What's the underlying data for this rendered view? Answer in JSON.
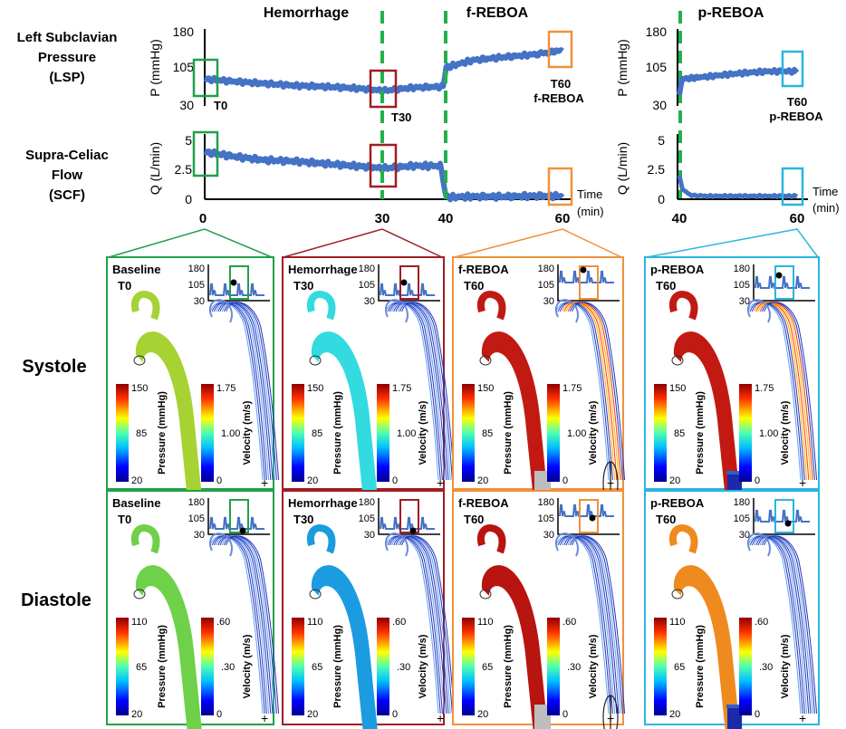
{
  "phase_titles": [
    "Hemorrhage",
    "f-REBOA",
    "p-REBOA"
  ],
  "row_labels": {
    "lsp": [
      "Left Subclavian",
      "Pressure",
      "(LSP)"
    ],
    "scf": [
      "Supra-Celiac",
      "Flow",
      "(SCF)"
    ],
    "systole": "Systole",
    "diastole": "Diastole"
  },
  "top_axes": {
    "p_label": "P (mmHg)",
    "q_label": "Q (L/min)",
    "p_ticks": [
      "180",
      "105",
      "30"
    ],
    "q_ticks": [
      "5",
      "2.5",
      "0"
    ],
    "time_label": [
      "Time",
      "(min)"
    ],
    "x_ticks_left": [
      "0",
      "30",
      "40",
      "60"
    ],
    "x_ticks_right": [
      "40",
      "60"
    ]
  },
  "chart_data": [
    {
      "type": "line",
      "title": "Left Subclavian Pressure (LSP)",
      "ylabel": "P (mmHg)",
      "xlabel": "Time (min)",
      "ylim": [
        30,
        180
      ],
      "xlim": [
        0,
        60
      ],
      "series": [
        {
          "name": "Hemorrhage + f-REBOA",
          "x": [
            0,
            5,
            10,
            15,
            20,
            25,
            30,
            35,
            40,
            40.5,
            45,
            50,
            55,
            58,
            60
          ],
          "y": [
            85,
            80,
            76,
            72,
            70,
            67,
            62,
            68,
            70,
            108,
            122,
            128,
            133,
            138,
            142
          ]
        },
        {
          "name": "p-REBOA",
          "x": [
            40,
            40.5,
            45,
            50,
            55,
            60
          ],
          "y": [
            55,
            85,
            90,
            96,
            100,
            100
          ]
        }
      ],
      "annotations": [
        "T0",
        "T30",
        "T60 f-REBOA",
        "T60 p-REBOA"
      ]
    },
    {
      "type": "line",
      "title": "Supra-Celiac Flow (SCF)",
      "ylabel": "Q (L/min)",
      "xlabel": "Time (min)",
      "ylim": [
        0,
        5
      ],
      "xlim": [
        0,
        60
      ],
      "series": [
        {
          "name": "Hemorrhage + f-REBOA",
          "x": [
            0,
            5,
            10,
            15,
            20,
            25,
            30,
            35,
            39.5,
            40.5,
            45,
            50,
            55,
            60
          ],
          "y": [
            4.0,
            3.6,
            3.3,
            3.2,
            3.0,
            2.8,
            2.6,
            2.8,
            2.8,
            0.1,
            0.15,
            0.15,
            0.2,
            0.2
          ]
        },
        {
          "name": "p-REBOA",
          "x": [
            40,
            40.5,
            42,
            45,
            50,
            55,
            60
          ],
          "y": [
            2.0,
            0.8,
            0.25,
            0.2,
            0.2,
            0.2,
            0.2
          ]
        }
      ]
    }
  ],
  "panels": [
    {
      "color": "#21a04a",
      "systole_label": [
        "Baseline",
        "T0"
      ],
      "diastole_label": [
        "Baseline",
        "T0"
      ],
      "artery_sys": "#a6d233",
      "artery_dia": "#6fd04a",
      "balloon": false,
      "occluded": false
    },
    {
      "color": "#a11d22",
      "systole_label": [
        "Hemorrhage",
        "T30"
      ],
      "diastole_label": [
        "Hemorrhage",
        "T30"
      ],
      "artery_sys": "#33dbe0",
      "artery_dia": "#1b9ce0",
      "balloon": false,
      "occluded": false
    },
    {
      "color": "#f0913a",
      "systole_label": [
        "f-REBOA",
        "T60"
      ],
      "diastole_label": [
        "f-REBOA",
        "T60"
      ],
      "artery_sys": "#c21a12",
      "artery_dia": "#b81410",
      "balloon": true,
      "occluded": true
    },
    {
      "color": "#2ab5e0",
      "systole_label": [
        "p-REBOA",
        "T60"
      ],
      "diastole_label": [
        "p-REBOA",
        "T60"
      ],
      "artery_sys": "#c21a12",
      "artery_dia": "#ef8a1f",
      "balloon": false,
      "occluded": true
    }
  ],
  "inset_ticks": [
    "180",
    "105",
    "30"
  ],
  "colorbars": {
    "pressure_label": "Pressure (mmHg)",
    "velocity_label": "Velocity (m/s)",
    "systole_pressure_ticks": [
      "150",
      "85",
      "20"
    ],
    "systole_velocity_ticks": [
      "1.75",
      "1.00",
      "0"
    ],
    "diastole_pressure_ticks": [
      "110",
      "65",
      "20"
    ],
    "diastole_velocity_ticks": [
      ".60",
      ".30",
      "0"
    ]
  },
  "colors": {
    "trace": "#4472c4",
    "dash": "#22b14c",
    "axis": "#000000"
  }
}
